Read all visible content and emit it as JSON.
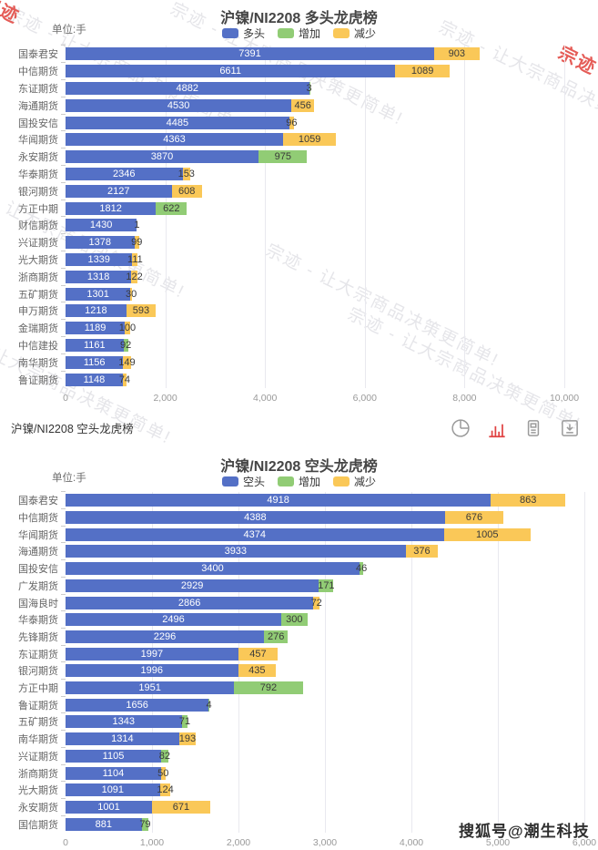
{
  "watermark": {
    "brand": "宗迹",
    "slogan": "宗迹 - 让大宗商品决策更简单!"
  },
  "footer_overlay": "搜狐号@潮生科技",
  "toolbar": {
    "title": "沪镍/NI2208 空头龙虎榜"
  },
  "colors": {
    "bar_main": "#5470c6",
    "bar_increase": "#91cc75",
    "bar_decrease": "#fac858",
    "active_icon": "#e04343",
    "idle_icon": "#9b9b9b"
  },
  "chart_data": [
    {
      "type": "bar",
      "orientation": "horizontal",
      "title": "沪镍/NI2208 多头龙虎榜",
      "unit_label": "单位:手",
      "legend": [
        "多头",
        "增加",
        "减少"
      ],
      "xlim": [
        0,
        10000
      ],
      "x_ticks": [
        "0",
        "2,000",
        "4,000",
        "6,000",
        "8,000",
        "10,000"
      ],
      "grid": true,
      "legend_position": "top",
      "categories": [
        "国泰君安",
        "中信期货",
        "东证期货",
        "海通期货",
        "国投安信",
        "华闻期货",
        "永安期货",
        "华泰期货",
        "银河期货",
        "方正中期",
        "财信期货",
        "兴证期货",
        "光大期货",
        "浙商期货",
        "五矿期货",
        "申万期货",
        "金瑞期货",
        "中信建投",
        "南华期货",
        "鲁证期货"
      ],
      "series": [
        {
          "name": "多头",
          "values": [
            7391,
            6611,
            4882,
            4530,
            4485,
            4363,
            3870,
            2346,
            2127,
            1812,
            1430,
            1378,
            1339,
            1318,
            1301,
            1218,
            1189,
            1161,
            1156,
            1148
          ]
        },
        {
          "name": "增加",
          "values": [
            0,
            0,
            3,
            0,
            0,
            0,
            975,
            0,
            0,
            622,
            1,
            0,
            0,
            0,
            0,
            0,
            0,
            92,
            0,
            0
          ]
        },
        {
          "name": "减少",
          "values": [
            903,
            1089,
            0,
            456,
            96,
            1059,
            0,
            153,
            608,
            0,
            0,
            99,
            111,
            122,
            30,
            593,
            100,
            0,
            149,
            74
          ]
        }
      ]
    },
    {
      "type": "bar",
      "orientation": "horizontal",
      "title": "沪镍/NI2208 空头龙虎榜",
      "unit_label": "单位:手",
      "legend": [
        "空头",
        "增加",
        "减少"
      ],
      "xlim": [
        0,
        6000
      ],
      "x_ticks": [
        "0",
        "1,000",
        "2,000",
        "3,000",
        "4,000",
        "5,000",
        "6,000"
      ],
      "grid": true,
      "legend_position": "top",
      "categories": [
        "国泰君安",
        "中信期货",
        "华闻期货",
        "海通期货",
        "国投安信",
        "广发期货",
        "国海良时",
        "华泰期货",
        "先锋期货",
        "东证期货",
        "银河期货",
        "方正中期",
        "鲁证期货",
        "五矿期货",
        "南华期货",
        "兴证期货",
        "浙商期货",
        "光大期货",
        "永安期货",
        "国信期货"
      ],
      "series": [
        {
          "name": "空头",
          "values": [
            4918,
            4388,
            4374,
            3933,
            3400,
            2929,
            2866,
            2496,
            2296,
            1997,
            1996,
            1951,
            1656,
            1343,
            1314,
            1105,
            1104,
            1091,
            1001,
            881
          ]
        },
        {
          "name": "增加",
          "values": [
            0,
            0,
            0,
            0,
            46,
            171,
            0,
            300,
            276,
            0,
            0,
            792,
            4,
            71,
            0,
            82,
            0,
            0,
            0,
            79
          ]
        },
        {
          "name": "减少",
          "values": [
            863,
            676,
            1005,
            376,
            0,
            0,
            72,
            0,
            0,
            457,
            435,
            0,
            0,
            0,
            193,
            0,
            50,
            124,
            671,
            0
          ]
        }
      ]
    }
  ]
}
